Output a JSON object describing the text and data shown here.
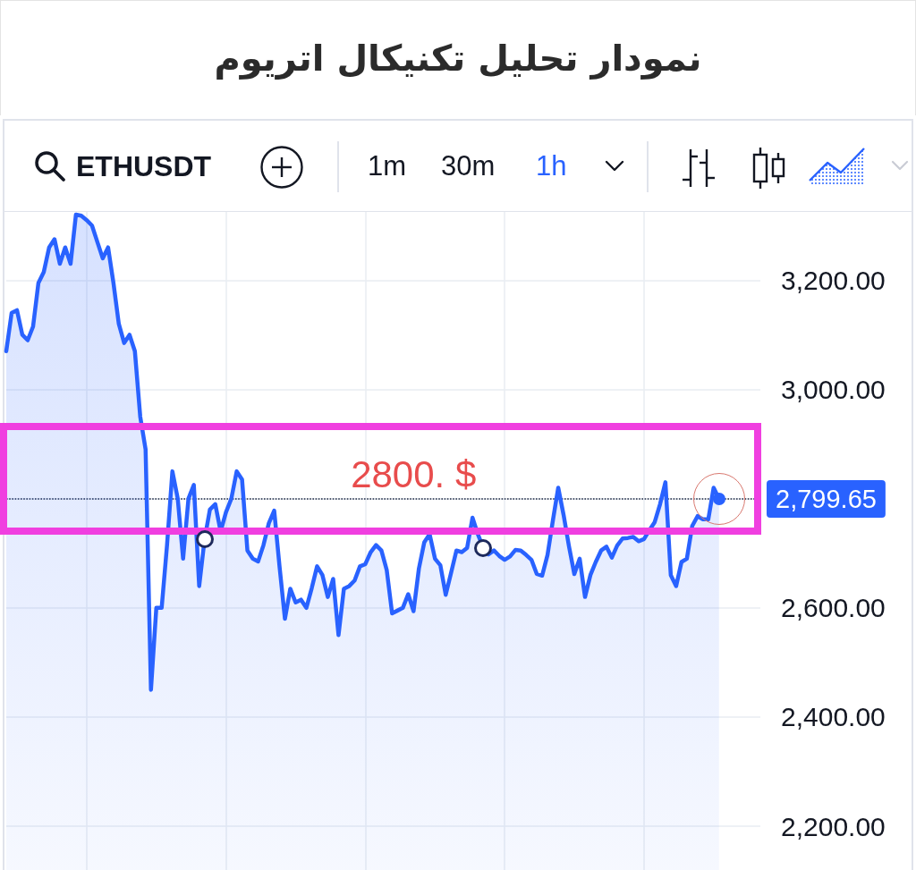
{
  "chart_data": {
    "type": "area",
    "title": "نمودار تحلیل تکنیکال اتریوم",
    "categories": [
      null,
      null,
      null,
      null,
      null,
      null,
      null,
      null,
      null,
      null,
      null,
      null,
      null,
      null,
      null,
      null,
      null,
      null,
      null,
      null,
      null,
      null,
      null,
      null,
      null,
      null,
      null,
      null,
      null,
      null,
      null,
      null,
      null,
      null,
      null,
      null,
      null,
      null,
      null,
      null,
      null,
      null,
      null,
      null,
      null,
      null,
      null,
      null,
      null,
      null,
      null,
      null,
      null,
      null,
      null,
      null,
      null,
      null,
      null,
      null,
      null,
      null,
      null,
      null,
      null,
      null,
      null,
      null,
      null,
      null,
      null,
      null,
      null,
      null,
      null,
      null,
      null,
      null,
      null,
      null,
      null,
      null,
      null,
      null,
      null,
      null,
      null,
      null,
      null,
      null,
      null,
      null,
      null,
      null,
      null,
      null,
      null,
      null,
      null,
      null,
      null,
      null,
      null,
      null,
      null,
      null,
      null,
      null,
      null,
      null,
      null,
      null,
      null,
      null,
      null,
      null,
      null,
      null,
      null,
      null,
      null,
      null,
      null,
      null,
      null,
      null,
      null,
      null,
      null,
      null,
      null,
      null,
      null,
      null
    ],
    "series": [
      {
        "color": "#2962ff",
        "values": [
          3070,
          3140,
          3145,
          3100,
          3090,
          3115,
          3195,
          3215,
          3260,
          3275,
          3230,
          3260,
          3230,
          3320,
          3318,
          3310,
          3300,
          3270,
          3240,
          3260,
          3195,
          3120,
          3085,
          3100,
          3070,
          2950,
          2890,
          2450,
          2600,
          2600,
          2715,
          2850,
          2800,
          2690,
          2800,
          2825,
          2640,
          2725,
          2780,
          2790,
          2740,
          2775,
          2800,
          2850,
          2835,
          2705,
          2690,
          2685,
          2715,
          2755,
          2778,
          2675,
          2580,
          2635,
          2610,
          2615,
          2600,
          2636,
          2676,
          2660,
          2620,
          2653,
          2550,
          2635,
          2640,
          2650,
          2676,
          2680,
          2702,
          2715,
          2705,
          2669,
          2590,
          2595,
          2600,
          2625,
          2594,
          2672,
          2720,
          2735,
          2690,
          2678,
          2624,
          2664,
          2705,
          2702,
          2710,
          2765,
          2735,
          2710,
          2698,
          2705,
          2695,
          2688,
          2694,
          2706,
          2705,
          2697,
          2688,
          2662,
          2659,
          2697,
          2760,
          2820,
          2770,
          2713,
          2662,
          2690,
          2620,
          2660,
          2684,
          2705,
          2712,
          2692,
          2714,
          2727,
          2728,
          2730,
          2722,
          2726,
          2742,
          2757,
          2790,
          2830,
          2660,
          2640,
          2684,
          2690,
          2750,
          2768,
          2762,
          2762,
          2820,
          2800
        ]
      }
    ],
    "ylim": [
      2120,
      3325
    ],
    "yticks": [
      {
        "value": 2200,
        "label": "2,200.00"
      },
      {
        "value": 2400,
        "label": "2,400.00"
      },
      {
        "value": 2600,
        "label": "2,600.00"
      },
      {
        "value": 2800,
        "label": null
      },
      {
        "value": 3000,
        "label": "3,000.00"
      },
      {
        "value": 3200,
        "label": "3,200.00"
      }
    ],
    "tick_labels": "y",
    "grid": true,
    "ref_lines": [
      {
        "axis": "y",
        "value": 2799.65,
        "label": "2,799.65",
        "color": "#1f2a44",
        "line_style": "dotted"
      }
    ],
    "annotations": [
      "ETHUSDT",
      "1m",
      "30m",
      "1h",
      {
        "text": "2800. $",
        "y": 2800
      }
    ]
  }
}
